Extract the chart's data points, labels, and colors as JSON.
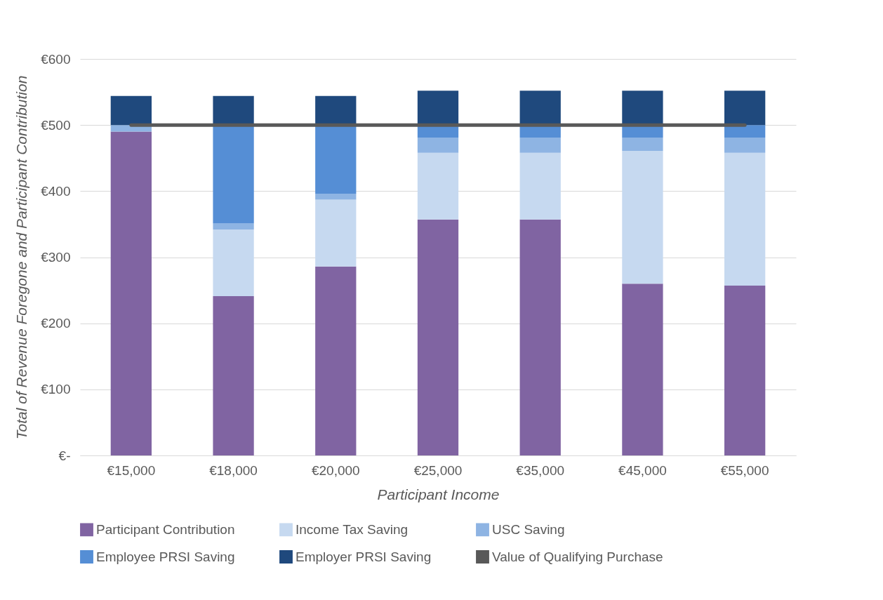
{
  "chart_data": {
    "type": "bar",
    "stacked": true,
    "xlabel": "Participant Income",
    "ylabel": "Total of Revenue Foregone and Participant Contribution",
    "categories": [
      "€15,000",
      "€18,000",
      "€20,000",
      "€25,000",
      "€35,000",
      "€45,000",
      "€55,000"
    ],
    "series": [
      {
        "name": "Participant Contribution",
        "color": "#8064a2",
        "values": [
          490,
          241,
          286,
          357,
          357,
          260,
          257
        ]
      },
      {
        "name": "Income Tax Saving",
        "color": "#c6d9f0",
        "values": [
          0,
          101,
          101,
          101,
          101,
          201,
          201
        ]
      },
      {
        "name": "USC Saving",
        "color": "#8eb4e3",
        "values": [
          10,
          9,
          9,
          23,
          23,
          20,
          23
        ]
      },
      {
        "name": "Employee PRSI Saving",
        "color": "#558ed5",
        "values": [
          0,
          149,
          104,
          19,
          19,
          19,
          19
        ]
      },
      {
        "name": "Employer PRSI Saving",
        "color": "#1f497d",
        "values": [
          44,
          44,
          44,
          52,
          52,
          52,
          52
        ]
      },
      {
        "name": "Value of Qualifying Purchase",
        "type": "line",
        "color": "#595959",
        "values": [
          500,
          500,
          500,
          500,
          500,
          500,
          500
        ]
      }
    ],
    "ylim": [
      0,
      600
    ],
    "yticks": [
      {
        "value": 0,
        "label": "€-"
      },
      {
        "value": 100,
        "label": "€100"
      },
      {
        "value": 200,
        "label": "€200"
      },
      {
        "value": 300,
        "label": "€300"
      },
      {
        "value": 400,
        "label": "€400"
      },
      {
        "value": 500,
        "label": "€500"
      },
      {
        "value": 600,
        "label": "€600"
      }
    ],
    "grid": "y",
    "legend": "bottom"
  }
}
